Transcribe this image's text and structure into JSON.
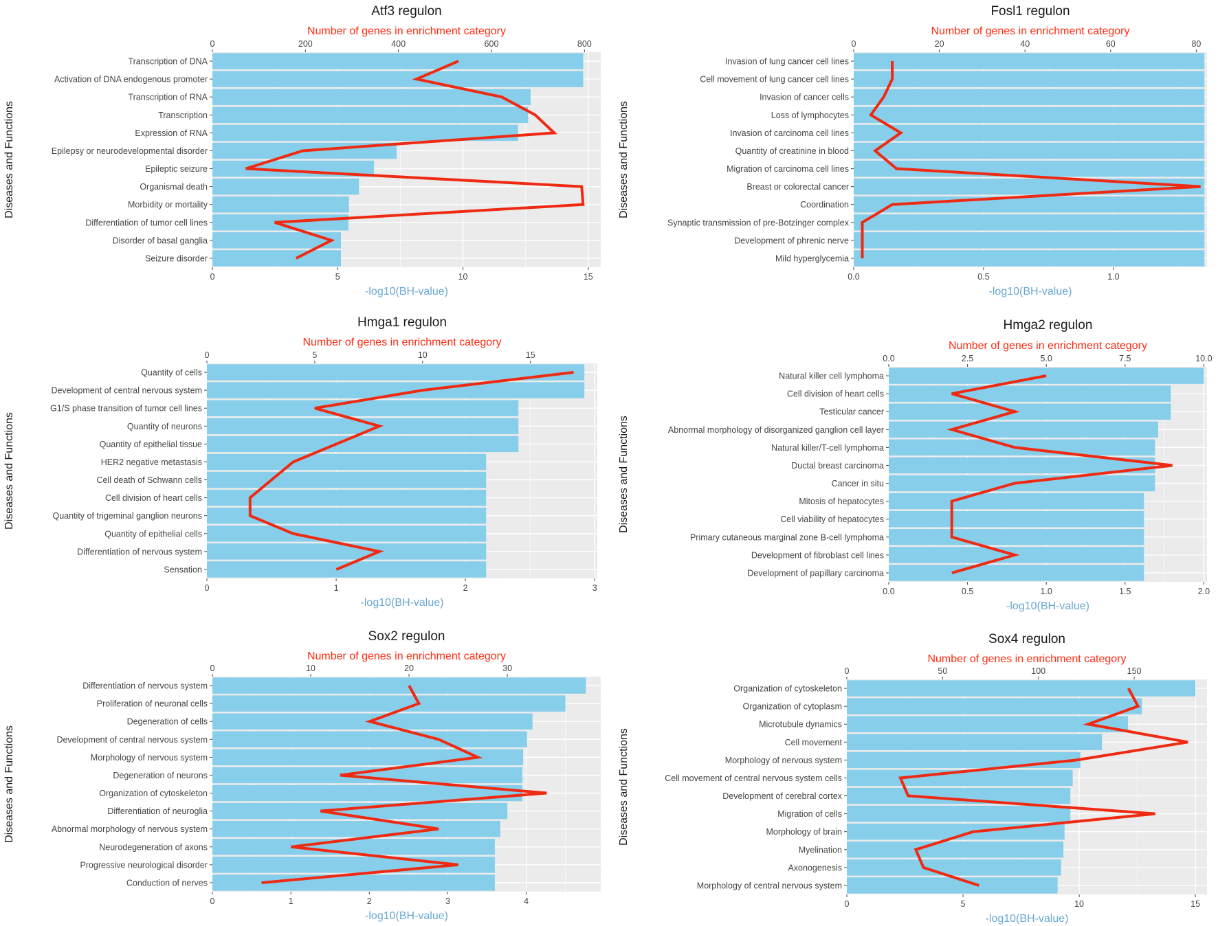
{
  "colors": {
    "panel_bg": "#ebebeb",
    "grid": "#ffffff",
    "bar": "#87ceeb",
    "line": "#ee2a12",
    "top_label": "#ff2a0f",
    "bottom_label": "#69a7d2",
    "tick": "#444444"
  },
  "chart_data": [
    {
      "type": "bar",
      "title": "Atf3 regulon",
      "xlabel": "-log10(BH-value)",
      "ylabel": "Diseases and Functions",
      "x2label": "Number of genes in enrichment category",
      "xlim": [
        0,
        15.5
      ],
      "xticks": [
        0,
        5,
        10,
        15
      ],
      "x2lim": [
        0,
        835
      ],
      "x2ticks": [
        0,
        200,
        400,
        600,
        800
      ],
      "categories": [
        "Transcription of DNA",
        "Activation of DNA endogenous promoter",
        "Transcription of RNA",
        "Transcription",
        "Expression of RNA",
        "Epilepsy or neurodevelopmental disorder",
        "Epileptic seizure",
        "Organismal death",
        "Morbidity or mortality",
        "Differentiation of tumor cell lines",
        "Disorder of basal ganglia",
        "Seizure disorder"
      ],
      "values": [
        14.8,
        14.8,
        12.7,
        12.6,
        12.2,
        7.35,
        6.45,
        5.85,
        5.45,
        5.43,
        5.13,
        5.13
      ],
      "series2_name": "Number of genes",
      "series2_values": [
        529,
        439,
        622,
        694,
        735,
        194,
        72,
        794,
        797,
        134,
        256,
        180
      ]
    },
    {
      "type": "bar",
      "title": "Fosl1 regulon",
      "xlabel": "-log10(BH-value)",
      "ylabel": "Diseases and Functions",
      "x2label": "Number of genes in enrichment category",
      "xlim": [
        0,
        1.36
      ],
      "xticks": [
        0.0,
        0.5,
        1.0
      ],
      "xtick_labels": [
        "0.0",
        "0.5",
        "1.0"
      ],
      "x2lim": [
        0,
        82.5
      ],
      "x2ticks": [
        0,
        20,
        40,
        60,
        80
      ],
      "categories": [
        "Invasion of lung cancer cell lines",
        "Cell movement of lung cancer cell lines",
        "Invasion of cancer cells",
        "Loss of lymphocytes",
        "Invasion of carcinoma cell lines",
        "Quantity of creatinine in blood",
        "Migration of carcinoma cell lines",
        "Breast or colorectal cancer",
        "Coordination",
        "Synaptic transmission of pre-Botzinger complex",
        "Development of phrenic nerve",
        "Mild hyperglycemia"
      ],
      "values": [
        1.35,
        1.35,
        1.35,
        1.35,
        1.35,
        1.35,
        1.35,
        1.35,
        1.35,
        1.35,
        1.35,
        1.35
      ],
      "series2_name": "Number of genes",
      "series2_values": [
        9,
        9,
        7,
        4,
        11,
        5,
        10,
        81,
        9,
        2,
        2,
        2
      ]
    },
    {
      "type": "bar",
      "title": "Hmga1 regulon",
      "xlabel": "-log10(BH-value)",
      "ylabel": "Diseases and Functions",
      "x2label": "Number of genes in enrichment category",
      "xlim": [
        0,
        3.02
      ],
      "xticks": [
        0,
        1,
        2,
        3
      ],
      "x2lim": [
        0,
        18.1
      ],
      "x2ticks": [
        0,
        5,
        10,
        15
      ],
      "categories": [
        "Quantity of cells",
        "Development of central nervous system",
        "G1/S phase transition of tumor cell lines",
        "Quantity of neurons",
        "Quantity of epithelial tissue",
        "HER2 negative metastasis",
        "Cell death of Schwann cells",
        "Cell division of heart cells",
        "Quantity of trigeminal ganglion neurons",
        "Quantity of epithelial cells",
        "Differentiation of nervous system",
        "Sensation"
      ],
      "values": [
        2.92,
        2.92,
        2.41,
        2.41,
        2.41,
        2.16,
        2.16,
        2.16,
        2.16,
        2.16,
        2.16,
        2.16
      ],
      "series2_name": "Number of genes",
      "series2_values": [
        17,
        10,
        5,
        8,
        6,
        4,
        3,
        2,
        2,
        4,
        8,
        6
      ]
    },
    {
      "type": "bar",
      "title": "Hmga2 regulon",
      "xlabel": "-log10(BH-value)",
      "ylabel": "Diseases and Functions",
      "x2label": "Number of genes in enrichment category",
      "xlim": [
        0,
        2.02
      ],
      "xticks": [
        0.0,
        0.5,
        1.0,
        1.5,
        2.0
      ],
      "xtick_labels": [
        "0.0",
        "0.5",
        "1.0",
        "1.5",
        "2.0"
      ],
      "x2lim": [
        0,
        10.1
      ],
      "x2ticks": [
        0.0,
        2.5,
        5.0,
        7.5,
        10.0
      ],
      "x2tick_labels": [
        "0.0",
        "2.5",
        "5.0",
        "7.5",
        "10.0"
      ],
      "categories": [
        "Natural killer cell lymphoma",
        "Cell division of heart cells",
        "Testicular cancer",
        "Abnormal morphology of disorganized ganglion cell layer",
        "Natural killer/T-cell lymphoma",
        "Ductal breast carcinoma",
        "Cancer in situ",
        "Mitosis of hepatocytes",
        "Cell viability of hepatocytes",
        "Primary cutaneous marginal zone B-cell lymphoma",
        "Development of fibroblast cell lines",
        "Development of papillary carcinoma"
      ],
      "values": [
        2.0,
        1.79,
        1.79,
        1.71,
        1.69,
        1.69,
        1.69,
        1.62,
        1.62,
        1.62,
        1.62,
        1.62
      ],
      "series2_name": "Number of genes",
      "series2_values": [
        5,
        2,
        4,
        2,
        4,
        9,
        4,
        2,
        2,
        2,
        4,
        2
      ]
    },
    {
      "type": "bar",
      "title": "Sox2 regulon",
      "xlabel": "-log10(BH-value)",
      "ylabel": "Diseases and Functions",
      "x2label": "Number of genes in enrichment category",
      "xlim": [
        0,
        4.95
      ],
      "xticks": [
        0,
        1,
        2,
        3,
        4
      ],
      "x2lim": [
        0,
        39.5
      ],
      "x2ticks": [
        0,
        10,
        20,
        30
      ],
      "categories": [
        "Differentiation of nervous system",
        "Proliferation of neuronal cells",
        "Degeneration of cells",
        "Development of central nervous system",
        "Morphology of nervous system",
        "Degeneration of neurons",
        "Organization of cytoskeleton",
        "Differentiation of neuroglia",
        "Abnormal morphology of nervous system",
        "Neurodegeneration of axons",
        "Progressive neurological disorder",
        "Conduction of nerves"
      ],
      "values": [
        4.76,
        4.5,
        4.08,
        4.01,
        3.96,
        3.95,
        3.95,
        3.76,
        3.67,
        3.6,
        3.6,
        3.6
      ],
      "series2_name": "Number of genes",
      "series2_values": [
        20,
        21,
        16,
        23,
        27,
        13,
        34,
        11,
        23,
        8,
        25,
        5
      ]
    },
    {
      "type": "bar",
      "title": "Sox4 regulon",
      "xlabel": "-log10(BH-value)",
      "ylabel": "Diseases and Functions",
      "x2label": "Number of genes in enrichment category",
      "xlim": [
        0,
        15.5
      ],
      "xticks": [
        0,
        5,
        10,
        15
      ],
      "x2lim": [
        0,
        188
      ],
      "x2ticks": [
        0,
        50,
        100,
        150
      ],
      "categories": [
        "Organization of cytoskeleton",
        "Organization of cytoplasm",
        "Microtubule dynamics",
        "Cell movement",
        "Morphology of nervous system",
        "Cell movement of central nervous system cells",
        "Development of cerebral cortex",
        "Migration of cells",
        "Morphology of brain",
        "Myelination",
        "Axonogenesis",
        "Morphology of central nervous system"
      ],
      "values": [
        15.0,
        12.7,
        12.1,
        10.98,
        10.05,
        9.72,
        9.62,
        9.62,
        9.37,
        9.32,
        9.22,
        9.07
      ],
      "series2_name": "Number of genes",
      "series2_values": [
        147,
        152,
        126,
        178,
        120,
        28,
        32,
        161,
        66,
        36,
        40,
        69
      ]
    }
  ]
}
